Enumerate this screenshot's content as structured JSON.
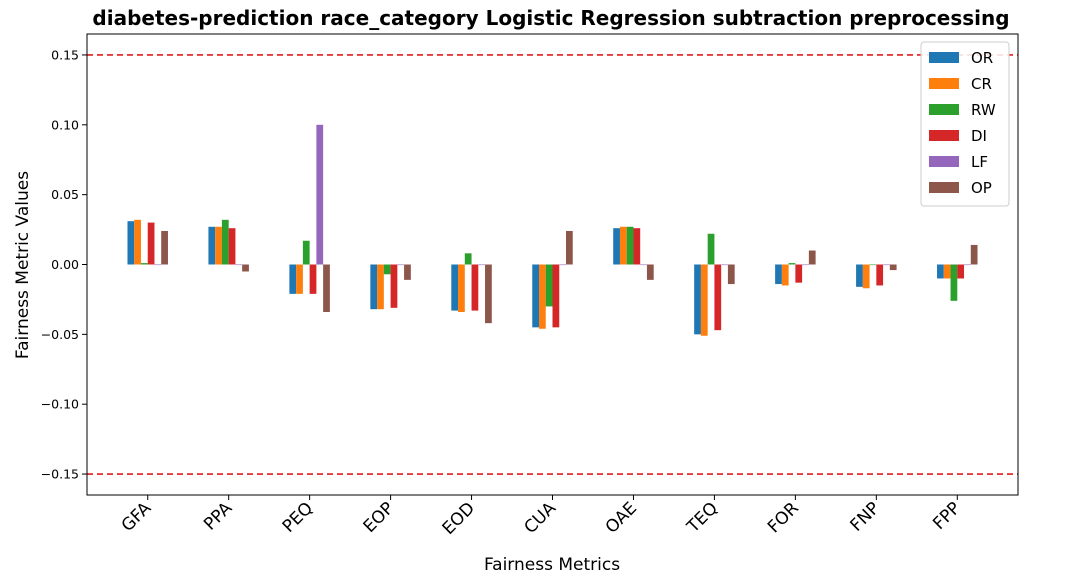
{
  "chart_data": {
    "type": "bar",
    "title": "diabetes-prediction race_category Logistic Regression subtraction preprocessing",
    "xlabel": "Fairness Metrics",
    "ylabel": "Fairness Metric Values",
    "ylim": [
      -0.165,
      0.165
    ],
    "yticks": [
      -0.15,
      -0.1,
      -0.05,
      0.0,
      0.05,
      0.1,
      0.15
    ],
    "ytick_labels": [
      "−0.15",
      "−0.10",
      "−0.05",
      "0.00",
      "0.05",
      "0.10",
      "0.15"
    ],
    "threshold_lines": [
      0.15,
      -0.15
    ],
    "threshold_color": "#e41a1c",
    "grid": false,
    "legend_position": "top-right",
    "categories": [
      "GFA",
      "PPA",
      "PEQ",
      "EOP",
      "EOD",
      "CUA",
      "OAE",
      "TEQ",
      "FOR",
      "FNP",
      "FPP"
    ],
    "series": [
      {
        "name": "OR",
        "color": "#1f77b4",
        "values": [
          0.031,
          0.027,
          -0.021,
          -0.032,
          -0.033,
          -0.045,
          0.026,
          -0.05,
          -0.014,
          -0.016,
          -0.01
        ]
      },
      {
        "name": "CR",
        "color": "#ff7f0e",
        "values": [
          0.032,
          0.027,
          -0.021,
          -0.032,
          -0.034,
          -0.046,
          0.027,
          -0.051,
          -0.015,
          -0.017,
          -0.01
        ]
      },
      {
        "name": "RW",
        "color": "#2ca02c",
        "values": [
          0.001,
          0.032,
          0.017,
          -0.007,
          0.008,
          -0.03,
          0.027,
          0.022,
          0.001,
          0.0,
          -0.026
        ]
      },
      {
        "name": "DI",
        "color": "#d62728",
        "values": [
          0.03,
          0.026,
          -0.021,
          -0.031,
          -0.033,
          -0.045,
          0.026,
          -0.047,
          -0.013,
          -0.015,
          -0.01
        ]
      },
      {
        "name": "LF",
        "color": "#9467bd",
        "values": [
          0.0,
          0.0,
          0.1,
          0.0,
          0.0,
          0.0,
          0.0,
          0.0,
          0.0,
          0.0,
          0.0
        ]
      },
      {
        "name": "OP",
        "color": "#8c564b",
        "values": [
          0.024,
          -0.005,
          -0.034,
          -0.011,
          -0.042,
          0.024,
          -0.011,
          -0.014,
          0.01,
          -0.004,
          0.014
        ]
      }
    ]
  }
}
